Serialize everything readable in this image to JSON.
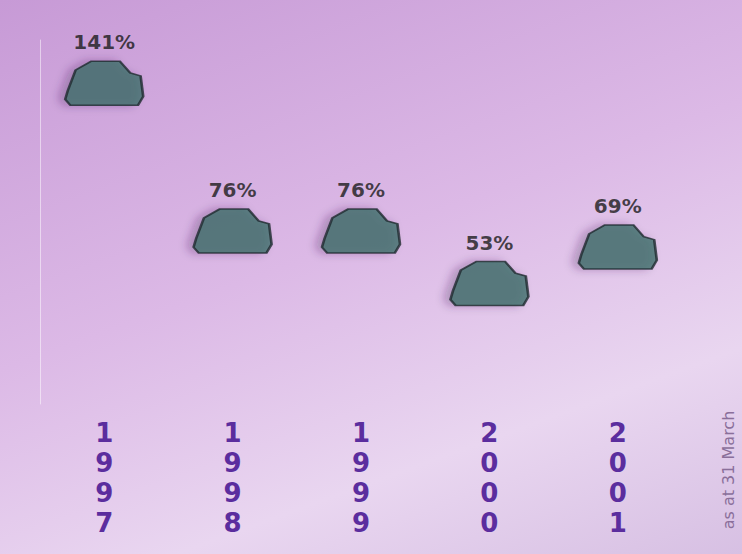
{
  "chart_data": {
    "type": "pictorial",
    "categories": [
      "1997",
      "1998",
      "1999",
      "2000",
      "2001"
    ],
    "values": [
      141,
      76,
      76,
      53,
      69
    ],
    "value_labels": [
      "141%",
      "76%",
      "76%",
      "53%",
      "69%"
    ],
    "data_labels": true,
    "annotation": "as at 31 March",
    "ylim": [
      0,
      160
    ],
    "tick_labels": "x",
    "grid": false,
    "color": "#3f6e6a"
  }
}
